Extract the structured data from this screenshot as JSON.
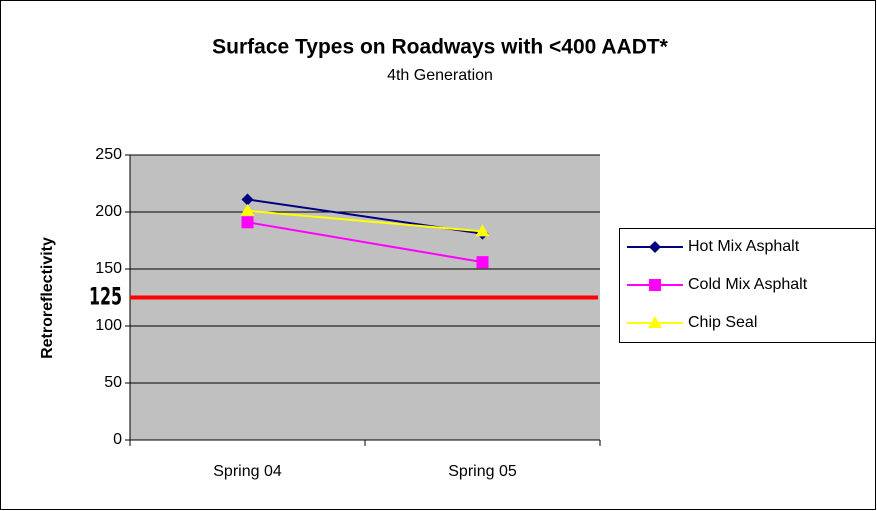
{
  "chart_data": {
    "type": "line",
    "title": "Surface Types on Roadways with <400 AADT*",
    "subtitle": "4th Generation",
    "y_label": "Retroreflectivity",
    "categories": [
      "Spring 04",
      "Spring 05"
    ],
    "series": [
      {
        "name": "Hot Mix Asphalt",
        "color": "#000080",
        "marker": "diamond",
        "values": [
          211,
          181
        ]
      },
      {
        "name": "Cold Mix Asphalt",
        "color": "#ff00ff",
        "marker": "square",
        "values": [
          191,
          156
        ]
      },
      {
        "name": "Chip Seal",
        "color": "#ffff00",
        "marker": "triangle",
        "values": [
          201,
          183
        ]
      }
    ],
    "threshold": 125,
    "threshold_color": "#ff0000",
    "ylim": [
      0,
      250
    ],
    "yticks": [
      0,
      50,
      100,
      150,
      200,
      250
    ],
    "grid": true,
    "legend": "right"
  }
}
